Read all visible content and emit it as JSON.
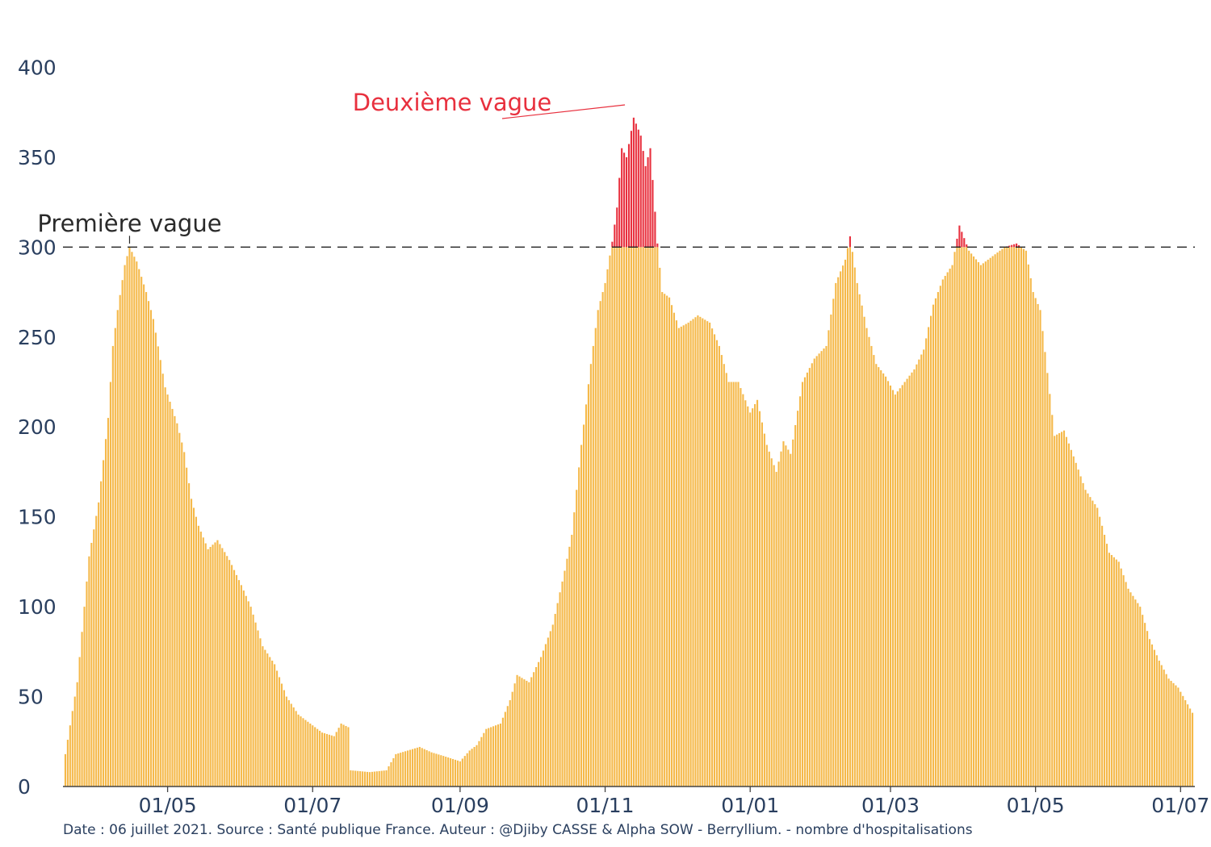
{
  "chart_data": {
    "type": "bar",
    "title": "",
    "xlabel": "",
    "ylabel": "",
    "ylim": [
      0,
      415
    ],
    "x_range": [
      "2020-03-18",
      "2021-07-07"
    ],
    "grid": false,
    "legend": "none",
    "threshold": 300,
    "colors": {
      "base": "#f5b94a",
      "excess": "#e8303e",
      "axis_text": "#2a3f5f",
      "wave2_text": "#e8303e",
      "wave1_text": "#2a2a2a"
    },
    "y_ticks": [
      0,
      50,
      100,
      150,
      200,
      250,
      300,
      350,
      400
    ],
    "x_ticks": [
      {
        "date": "2020-05-01",
        "label": "01/05"
      },
      {
        "date": "2020-07-01",
        "label": "01/07"
      },
      {
        "date": "2020-09-01",
        "label": "01/09"
      },
      {
        "date": "2020-11-01",
        "label": "01/11"
      },
      {
        "date": "2021-01-01",
        "label": "01/01"
      },
      {
        "date": "2021-03-01",
        "label": "01/03"
      },
      {
        "date": "2021-05-01",
        "label": "01/05"
      },
      {
        "date": "2021-07-01",
        "label": "01/07"
      }
    ],
    "series_key_points": [
      [
        "2020-03-19",
        18
      ],
      [
        "2020-03-24",
        58
      ],
      [
        "2020-03-29",
        128
      ],
      [
        "2020-04-02",
        158
      ],
      [
        "2020-04-06",
        205
      ],
      [
        "2020-04-08",
        245
      ],
      [
        "2020-04-10",
        265
      ],
      [
        "2020-04-13",
        290
      ],
      [
        "2020-04-15",
        300
      ],
      [
        "2020-04-18",
        292
      ],
      [
        "2020-04-22",
        275
      ],
      [
        "2020-04-25",
        260
      ],
      [
        "2020-04-30",
        222
      ],
      [
        "2020-05-05",
        202
      ],
      [
        "2020-05-08",
        186
      ],
      [
        "2020-05-11",
        160
      ],
      [
        "2020-05-14",
        145
      ],
      [
        "2020-05-18",
        132
      ],
      [
        "2020-05-22",
        137
      ],
      [
        "2020-05-27",
        126
      ],
      [
        "2020-06-01",
        112
      ],
      [
        "2020-06-05",
        100
      ],
      [
        "2020-06-10",
        78
      ],
      [
        "2020-06-15",
        68
      ],
      [
        "2020-06-20",
        50
      ],
      [
        "2020-06-25",
        40
      ],
      [
        "2020-06-30",
        35
      ],
      [
        "2020-07-05",
        30
      ],
      [
        "2020-07-10",
        28
      ],
      [
        "2020-07-13",
        35
      ],
      [
        "2020-07-16",
        33
      ],
      [
        "2020-07-17",
        9
      ],
      [
        "2020-07-25",
        8
      ],
      [
        "2020-08-01",
        9
      ],
      [
        "2020-08-05",
        18
      ],
      [
        "2020-08-10",
        20
      ],
      [
        "2020-08-15",
        22
      ],
      [
        "2020-08-20",
        19
      ],
      [
        "2020-08-25",
        17
      ],
      [
        "2020-09-01",
        14
      ],
      [
        "2020-09-05",
        20
      ],
      [
        "2020-09-08",
        23
      ],
      [
        "2020-09-12",
        32
      ],
      [
        "2020-09-18",
        35
      ],
      [
        "2020-09-22",
        48
      ],
      [
        "2020-09-25",
        62
      ],
      [
        "2020-09-30",
        58
      ],
      [
        "2020-10-05",
        72
      ],
      [
        "2020-10-10",
        90
      ],
      [
        "2020-10-15",
        120
      ],
      [
        "2020-10-18",
        140
      ],
      [
        "2020-10-22",
        190
      ],
      [
        "2020-10-26",
        235
      ],
      [
        "2020-10-29",
        265
      ],
      [
        "2020-11-01",
        280
      ],
      [
        "2020-11-04",
        303
      ],
      [
        "2020-11-06",
        322
      ],
      [
        "2020-11-08",
        355
      ],
      [
        "2020-11-10",
        350
      ],
      [
        "2020-11-13",
        372
      ],
      [
        "2020-11-16",
        362
      ],
      [
        "2020-11-18",
        345
      ],
      [
        "2020-11-20",
        355
      ],
      [
        "2020-11-23",
        302
      ],
      [
        "2020-11-25",
        275
      ],
      [
        "2020-11-28",
        272
      ],
      [
        "2020-12-02",
        255
      ],
      [
        "2020-12-06",
        258
      ],
      [
        "2020-12-10",
        262
      ],
      [
        "2020-12-15",
        258
      ],
      [
        "2020-12-19",
        245
      ],
      [
        "2020-12-23",
        225
      ],
      [
        "2020-12-27",
        225
      ],
      [
        "2021-01-01",
        208
      ],
      [
        "2021-01-04",
        215
      ],
      [
        "2021-01-08",
        190
      ],
      [
        "2021-01-12",
        175
      ],
      [
        "2021-01-15",
        192
      ],
      [
        "2021-01-18",
        185
      ],
      [
        "2021-01-23",
        225
      ],
      [
        "2021-01-28",
        238
      ],
      [
        "2021-02-02",
        245
      ],
      [
        "2021-02-06",
        280
      ],
      [
        "2021-02-10",
        293
      ],
      [
        "2021-02-12",
        306
      ],
      [
        "2021-02-15",
        280
      ],
      [
        "2021-02-19",
        255
      ],
      [
        "2021-02-23",
        235
      ],
      [
        "2021-02-27",
        228
      ],
      [
        "2021-03-03",
        218
      ],
      [
        "2021-03-07",
        225
      ],
      [
        "2021-03-11",
        232
      ],
      [
        "2021-03-15",
        243
      ],
      [
        "2021-03-19",
        268
      ],
      [
        "2021-03-23",
        282
      ],
      [
        "2021-03-27",
        290
      ],
      [
        "2021-03-30",
        312
      ],
      [
        "2021-04-03",
        298
      ],
      [
        "2021-04-08",
        290
      ],
      [
        "2021-04-13",
        295
      ],
      [
        "2021-04-18",
        300
      ],
      [
        "2021-04-23",
        302
      ],
      [
        "2021-04-27",
        298
      ],
      [
        "2021-04-30",
        275
      ],
      [
        "2021-05-03",
        265
      ],
      [
        "2021-05-06",
        230
      ],
      [
        "2021-05-09",
        195
      ],
      [
        "2021-05-13",
        198
      ],
      [
        "2021-05-18",
        180
      ],
      [
        "2021-05-22",
        165
      ],
      [
        "2021-05-27",
        155
      ],
      [
        "2021-06-01",
        130
      ],
      [
        "2021-06-05",
        125
      ],
      [
        "2021-06-09",
        110
      ],
      [
        "2021-06-14",
        100
      ],
      [
        "2021-06-18",
        82
      ],
      [
        "2021-06-22",
        70
      ],
      [
        "2021-06-26",
        60
      ],
      [
        "2021-06-30",
        55
      ],
      [
        "2021-07-03",
        48
      ],
      [
        "2021-07-06",
        41
      ]
    ],
    "annotations": [
      {
        "id": "wave1",
        "text": "Première vague",
        "date": "2020-04-15",
        "value": 300
      },
      {
        "id": "wave2",
        "text": "Deuxième vague",
        "date": "2020-11-10",
        "value": 380
      }
    ],
    "caption": "Date : 06 juillet 2021. Source : Santé publique France. Auteur : @Djiby CASSE & Alpha SOW - Berryllium. - nombre d'hospitalisations"
  }
}
